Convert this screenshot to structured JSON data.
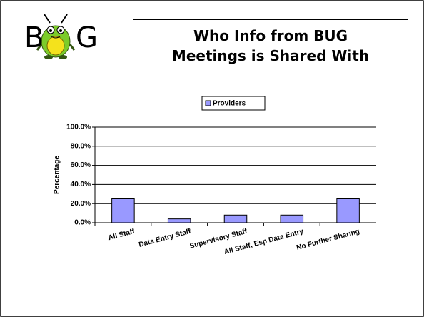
{
  "slide": {
    "logo": [
      "B",
      "G"
    ]
  },
  "chart_data": {
    "type": "bar",
    "title": "Who Info from BUG Meetings is Shared With",
    "y_label": "Percentage",
    "categories": [
      "All Staff",
      "Data Entry Staff",
      "Supervisory Staff",
      "All Staff, Esp Data Entry",
      "No Further Sharing"
    ],
    "series": [
      {
        "name": "Providers",
        "color": "#9999ff",
        "values": [
          25,
          4,
          8,
          8,
          25
        ]
      }
    ],
    "ylim": [
      0,
      100
    ],
    "yticks": [
      {
        "value": 0,
        "label": "0.0%"
      },
      {
        "value": 20,
        "label": "20.0%"
      },
      {
        "value": 40,
        "label": "40.0%"
      },
      {
        "value": 60,
        "label": "60.0%"
      },
      {
        "value": 80,
        "label": "80.0%"
      },
      {
        "value": 100,
        "label": "100.0%"
      }
    ],
    "grid": true,
    "legend": "top"
  }
}
